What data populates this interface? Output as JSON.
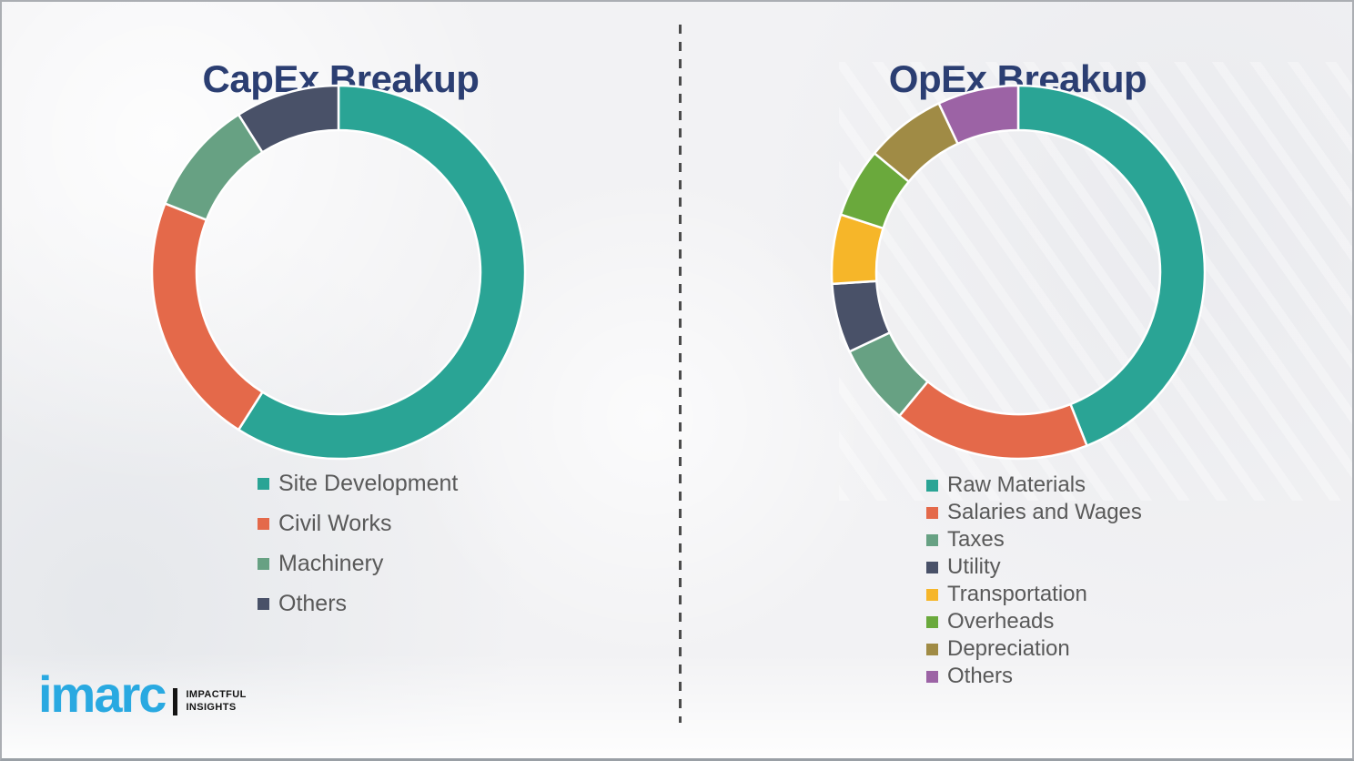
{
  "theme": {
    "background": "#f2f2f4",
    "title_color": "#2b3e72",
    "legend_text_color": "#595959",
    "divider_color": "#4b4b4b",
    "segment_gap_color": "#ffffff"
  },
  "chart_data": [
    {
      "type": "pie",
      "subtype": "donut",
      "title": "CapEx Breakup",
      "labels": [
        "Site Development",
        "Civil Works",
        "Machinery",
        "Others"
      ],
      "values": [
        59,
        22,
        10,
        9
      ],
      "colors": [
        "#2aa495",
        "#e4694a",
        "#67a183",
        "#495168"
      ],
      "start_angle_deg": 0,
      "direction": "clockwise",
      "hole_ratio": 0.76,
      "legend_position": "below-left",
      "data_labels_shown": false
    },
    {
      "type": "pie",
      "subtype": "donut",
      "title": "OpEx Breakup",
      "labels": [
        "Raw Materials",
        "Salaries and Wages",
        "Taxes",
        "Utility",
        "Transportation",
        "Overheads",
        "Depreciation",
        "Others"
      ],
      "values": [
        44,
        17,
        7,
        6,
        6,
        6,
        7,
        7
      ],
      "colors": [
        "#2aa495",
        "#e4694a",
        "#67a183",
        "#495168",
        "#f6b629",
        "#6aa93c",
        "#a08b45",
        "#9c63a5"
      ],
      "start_angle_deg": 0,
      "direction": "clockwise",
      "hole_ratio": 0.76,
      "legend_position": "below-left",
      "data_labels_shown": false
    }
  ],
  "logo": {
    "brand": "imarc",
    "brand_color": "#29a9e1",
    "tagline": [
      "IMPACTFUL",
      "INSIGHTS"
    ]
  }
}
